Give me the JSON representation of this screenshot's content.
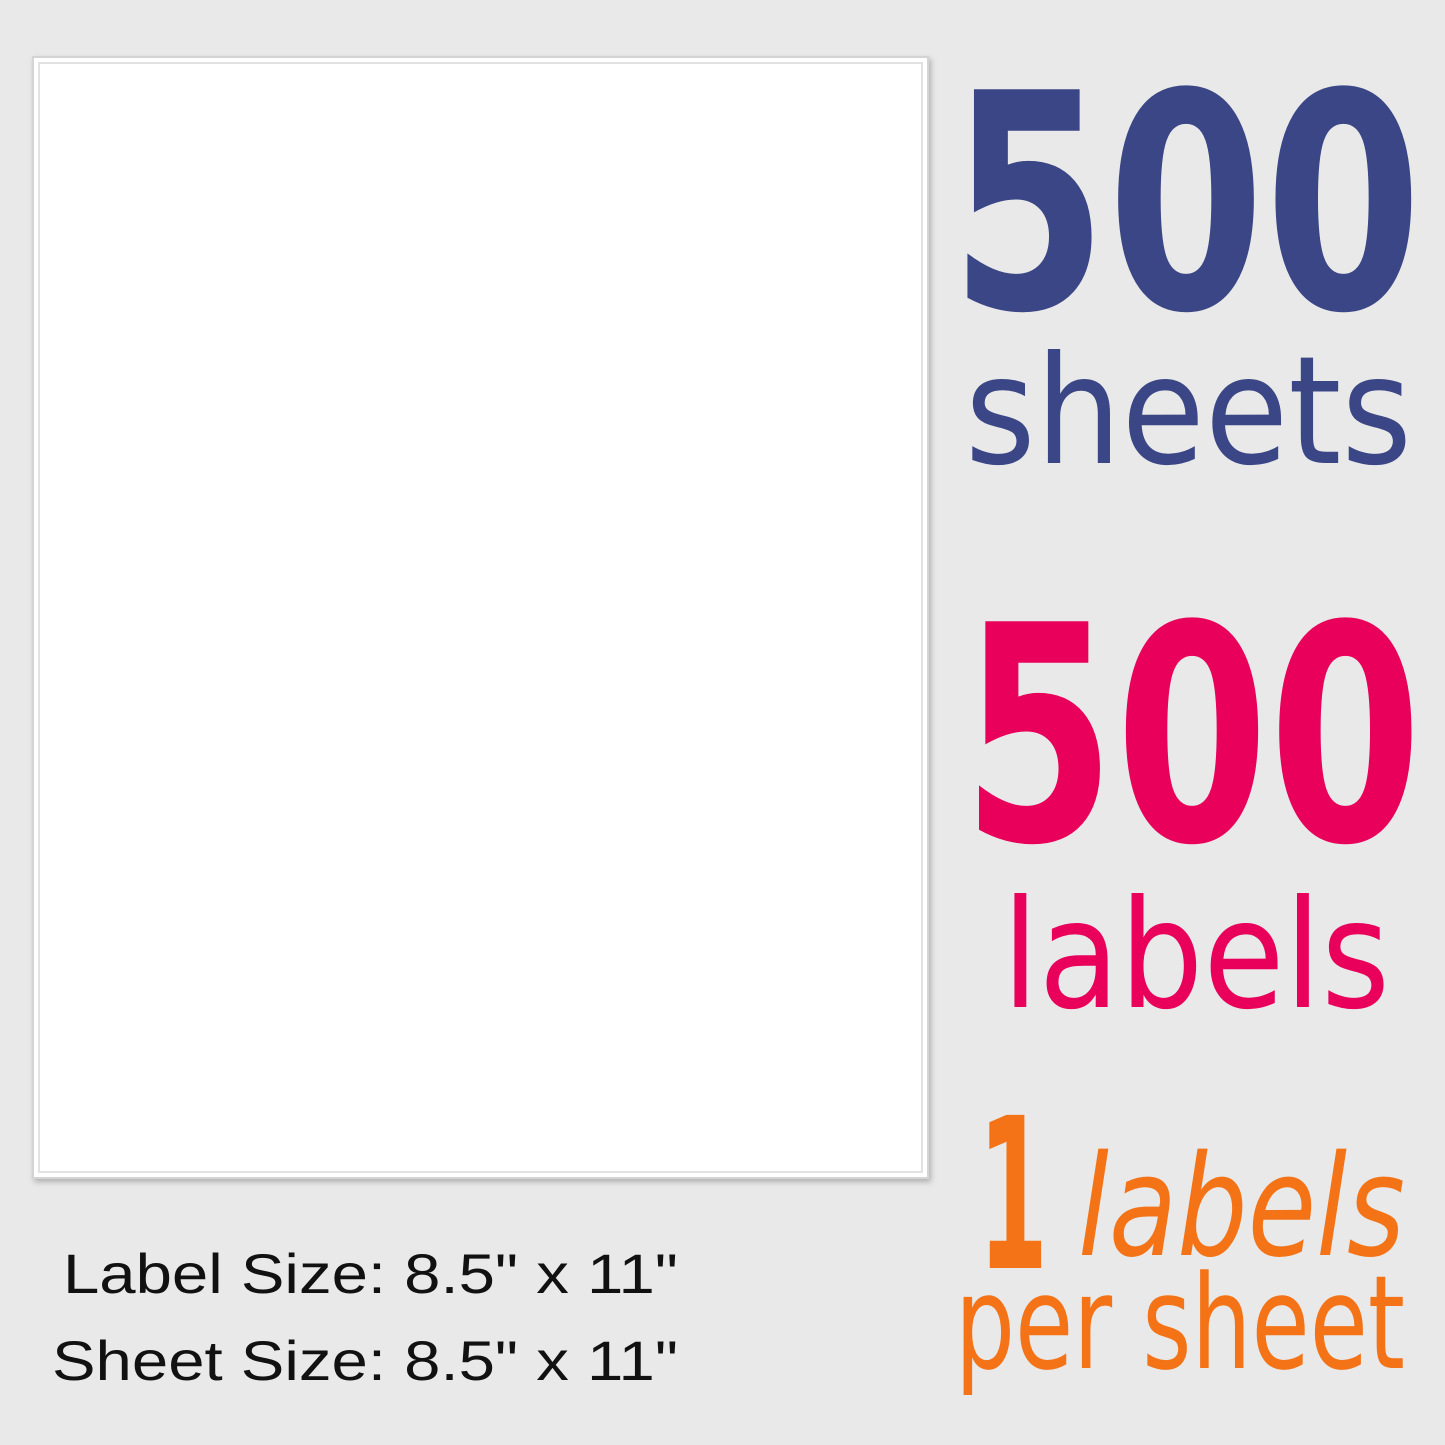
{
  "sheet_count": {
    "number": "500",
    "unit": "sheets"
  },
  "label_count": {
    "number": "500",
    "unit": "labels"
  },
  "labels_per_sheet": {
    "number": "1",
    "unit": "labels",
    "suffix": "per sheet"
  },
  "label_size": "Label Size: 8.5\" x 11\"",
  "sheet_size": "Sheet Size: 8.5\" x 11\""
}
